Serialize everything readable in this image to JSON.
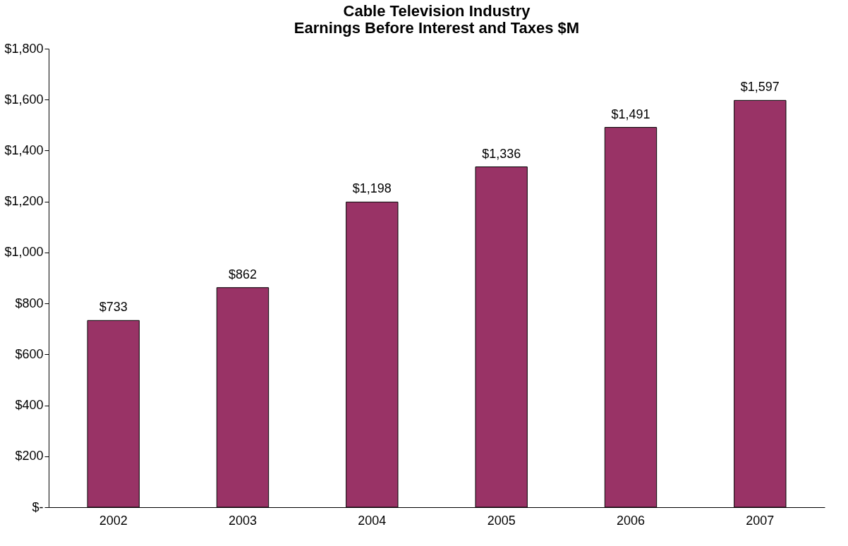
{
  "chart_data": {
    "type": "bar",
    "title": [
      "Cable Television Industry",
      "Earnings Before Interest and Taxes $M"
    ],
    "categories": [
      "2002",
      "2003",
      "2004",
      "2005",
      "2006",
      "2007"
    ],
    "values": [
      733,
      862,
      1198,
      1336,
      1491,
      1597
    ],
    "value_labels": [
      "$733",
      "$862",
      "$1,198",
      "$1,336",
      "$1,491",
      "$1,597"
    ],
    "color": "#993366",
    "ylim": [
      0,
      1800
    ],
    "yticks": [
      {
        "value": 0,
        "label": "$-"
      },
      {
        "value": 200,
        "label": "$200"
      },
      {
        "value": 400,
        "label": "$400"
      },
      {
        "value": 600,
        "label": "$600"
      },
      {
        "value": 800,
        "label": "$800"
      },
      {
        "value": 1000,
        "label": "$1,000"
      },
      {
        "value": 1200,
        "label": "$1,200"
      },
      {
        "value": 1400,
        "label": "$1,400"
      },
      {
        "value": 1600,
        "label": "$1,600"
      },
      {
        "value": 1800,
        "label": "$1,800"
      }
    ],
    "grid": false
  }
}
